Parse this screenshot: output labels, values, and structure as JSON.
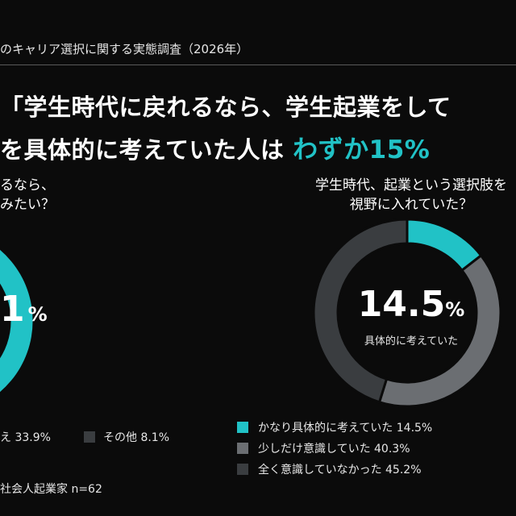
{
  "header": {
    "survey_title": "のキャリア選択に関する実態調査（2026年）",
    "headline_line1": "「学生時代に戻れるなら、学生起業をして",
    "headline_line2_prefix": "を具体的に考えていた人は",
    "headline_accent": "わずか15%"
  },
  "left_chart": {
    "question_line1": "るなら、",
    "question_line2": "みたい？",
    "big_value_text": "1",
    "big_value_pct": "%",
    "legend_partial_text": "え 33.9%",
    "legend_other_text": "その他 8.1%",
    "colors": {
      "accent": "#21c2c6",
      "other": "#3a3d40"
    }
  },
  "note": "社会人起業家 n=62",
  "chart_data": {
    "type": "pie",
    "title": "",
    "question_line1": "学生時代、起業という選択肢を",
    "question_line2": "視野に入れていた？",
    "center_value": "14.5",
    "center_unit": "%",
    "center_label": "具体的に考えていた",
    "categories": [
      "かなり具体的に考えていた",
      "少しだけ意識していた",
      "全く意識していなかった"
    ],
    "values": [
      14.5,
      40.3,
      45.2
    ],
    "legend_labels": [
      "かなり具体的に考えていた 14.5%",
      "少しだけ意識していた 40.3%",
      "全く意識していなかった 45.2%"
    ],
    "colors": [
      "#21c2c6",
      "#6b6e72",
      "#3a3d40"
    ],
    "legend": "bottom"
  }
}
